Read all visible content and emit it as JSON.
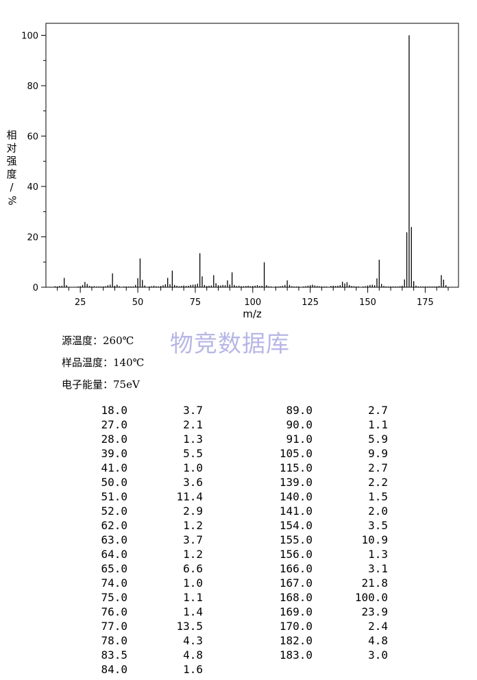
{
  "chart_data": {
    "type": "bar",
    "ylabel_lines": [
      "相",
      "对",
      "强",
      "度",
      "/",
      "%"
    ],
    "xlabel": "m/z",
    "xlim": [
      10,
      188
    ],
    "ylim": [
      0,
      105
    ],
    "x_ticks": [
      "25",
      "50",
      "75",
      "100",
      "125",
      "150",
      "175"
    ],
    "y_ticks": [
      "0",
      "20",
      "40",
      "60",
      "80",
      "100"
    ],
    "peaks_x": [
      14,
      15,
      16,
      17,
      18,
      19,
      24,
      25,
      26,
      27,
      28,
      29,
      30,
      31,
      32,
      33,
      34,
      35,
      36,
      37,
      38,
      39,
      40,
      41,
      42,
      44,
      45,
      46,
      47,
      48,
      49,
      50,
      51,
      52,
      53,
      55,
      56,
      57,
      58,
      59,
      60,
      61,
      62,
      63,
      64,
      65,
      66,
      67,
      68,
      69,
      70,
      71,
      72,
      73,
      74,
      75,
      76,
      77,
      78,
      79,
      80,
      81,
      82,
      83,
      84,
      85,
      86,
      87,
      88,
      89,
      90,
      91,
      92,
      93,
      94,
      95,
      96,
      97,
      98,
      99,
      100,
      101,
      102,
      103,
      104,
      105,
      106,
      107,
      108,
      110,
      111,
      112,
      113,
      114,
      115,
      116,
      117,
      118,
      119,
      120,
      122,
      123,
      124,
      125,
      126,
      127,
      128,
      129,
      130,
      131,
      132,
      134,
      135,
      136,
      137,
      138,
      139,
      140,
      141,
      142,
      143,
      144,
      145,
      146,
      148,
      149,
      150,
      151,
      152,
      153,
      154,
      155,
      156,
      157,
      158,
      159,
      160,
      161,
      162,
      163,
      164,
      165,
      166,
      167,
      168,
      169,
      170,
      171,
      172,
      173,
      174,
      175,
      176,
      177,
      178,
      179,
      180,
      181,
      182,
      183,
      184
    ],
    "peaks_y": [
      0.4,
      0.3,
      0.5,
      0.6,
      3.7,
      0.8,
      0.3,
      0.4,
      0.9,
      2.1,
      1.3,
      0.5,
      0.3,
      0.4,
      0.3,
      0.3,
      0.3,
      0.3,
      0.4,
      0.8,
      1.0,
      5.5,
      0.6,
      1.0,
      0.4,
      0.3,
      0.3,
      0.3,
      0.3,
      0.3,
      0.9,
      3.6,
      11.4,
      2.9,
      0.7,
      0.3,
      0.4,
      0.6,
      0.4,
      0.3,
      0.5,
      0.8,
      1.2,
      3.7,
      1.2,
      6.6,
      0.9,
      0.6,
      0.4,
      0.5,
      0.7,
      0.5,
      0.6,
      0.9,
      1.0,
      1.1,
      1.4,
      13.5,
      4.3,
      0.9,
      0.5,
      0.6,
      0.7,
      4.8,
      1.6,
      0.8,
      0.7,
      0.9,
      0.8,
      2.7,
      1.1,
      5.9,
      0.9,
      0.5,
      0.6,
      0.4,
      0.4,
      0.5,
      0.6,
      0.4,
      0.5,
      0.6,
      0.8,
      0.5,
      0.6,
      9.9,
      0.8,
      0.4,
      0.3,
      0.3,
      0.3,
      0.4,
      0.6,
      0.9,
      2.7,
      0.9,
      0.4,
      0.3,
      0.3,
      0.3,
      0.3,
      0.4,
      0.6,
      0.8,
      1.0,
      0.7,
      0.5,
      0.4,
      0.3,
      0.3,
      0.3,
      0.5,
      0.6,
      0.5,
      0.6,
      0.8,
      2.2,
      1.5,
      2.0,
      0.9,
      0.5,
      0.4,
      0.3,
      0.3,
      0.3,
      0.4,
      0.7,
      0.9,
      1.0,
      0.8,
      3.5,
      10.9,
      1.3,
      0.5,
      0.3,
      0.3,
      0.3,
      0.3,
      0.3,
      0.3,
      0.4,
      0.6,
      3.1,
      21.8,
      100.0,
      23.9,
      2.4,
      0.6,
      0.3,
      0.3,
      0.3,
      0.3,
      0.3,
      0.3,
      0.3,
      0.3,
      0.3,
      0.5,
      4.8,
      3.0,
      0.8
    ],
    "peak_list_left": [
      {
        "mz": "18.0",
        "intensity": "3.7"
      },
      {
        "mz": "27.0",
        "intensity": "2.1"
      },
      {
        "mz": "28.0",
        "intensity": "1.3"
      },
      {
        "mz": "39.0",
        "intensity": "5.5"
      },
      {
        "mz": "41.0",
        "intensity": "1.0"
      },
      {
        "mz": "50.0",
        "intensity": "3.6"
      },
      {
        "mz": "51.0",
        "intensity": "11.4"
      },
      {
        "mz": "52.0",
        "intensity": "2.9"
      },
      {
        "mz": "62.0",
        "intensity": "1.2"
      },
      {
        "mz": "63.0",
        "intensity": "3.7"
      },
      {
        "mz": "64.0",
        "intensity": "1.2"
      },
      {
        "mz": "65.0",
        "intensity": "6.6"
      },
      {
        "mz": "74.0",
        "intensity": "1.0"
      },
      {
        "mz": "75.0",
        "intensity": "1.1"
      },
      {
        "mz": "76.0",
        "intensity": "1.4"
      },
      {
        "mz": "77.0",
        "intensity": "13.5"
      },
      {
        "mz": "78.0",
        "intensity": "4.3"
      },
      {
        "mz": "83.5",
        "intensity": "4.8"
      },
      {
        "mz": "84.0",
        "intensity": "1.6"
      }
    ],
    "peak_list_right": [
      {
        "mz": "89.0",
        "intensity": "2.7"
      },
      {
        "mz": "90.0",
        "intensity": "1.1"
      },
      {
        "mz": "91.0",
        "intensity": "5.9"
      },
      {
        "mz": "105.0",
        "intensity": "9.9"
      },
      {
        "mz": "115.0",
        "intensity": "2.7"
      },
      {
        "mz": "139.0",
        "intensity": "2.2"
      },
      {
        "mz": "140.0",
        "intensity": "1.5"
      },
      {
        "mz": "141.0",
        "intensity": "2.0"
      },
      {
        "mz": "154.0",
        "intensity": "3.5"
      },
      {
        "mz": "155.0",
        "intensity": "10.9"
      },
      {
        "mz": "156.0",
        "intensity": "1.3"
      },
      {
        "mz": "166.0",
        "intensity": "3.1"
      },
      {
        "mz": "167.0",
        "intensity": "21.8"
      },
      {
        "mz": "168.0",
        "intensity": "100.0"
      },
      {
        "mz": "169.0",
        "intensity": "23.9"
      },
      {
        "mz": "170.0",
        "intensity": "2.4"
      },
      {
        "mz": "182.0",
        "intensity": "4.8"
      },
      {
        "mz": "183.0",
        "intensity": "3.0"
      }
    ]
  },
  "conditions": {
    "source_temp": "源温度：260℃",
    "sample_temp": "样品温度：140℃",
    "electron_energy": "电子能量：75eV"
  },
  "watermark": "物竞数据库"
}
